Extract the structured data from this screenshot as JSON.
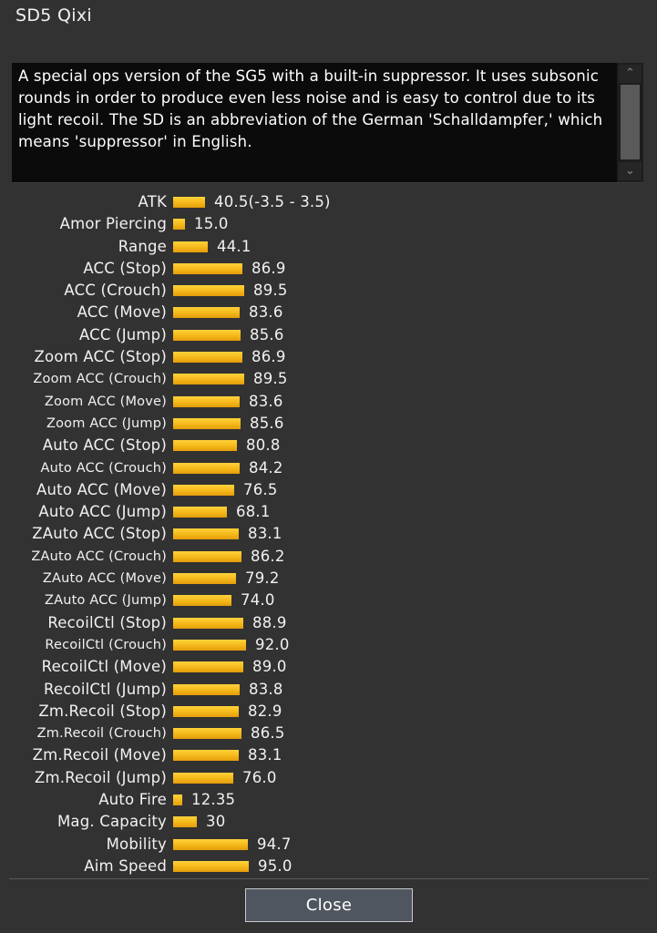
{
  "window": {
    "title": "SD5 Qixi"
  },
  "description": {
    "text": "A special ops version of the SG5 with a built-in suppressor. It uses subsonic rounds in order to produce even less noise and is easy to control due to its light recoil. The SD is an abbreviation of the German 'Schalldampfer,' which means 'suppressor' in English.",
    "scroll_up_icon": "chevron-up-icon",
    "scroll_down_icon": "chevron-down-icon"
  },
  "colors": {
    "background": "#323232",
    "description_bg": "#0b0b0b",
    "bar_top": "#ffd23a",
    "bar_bottom": "#e39c0a",
    "button_bg": "#4f565f"
  },
  "stats": [
    {
      "label": "ATK",
      "value": "40.5(-3.5 - 3.5)",
      "fill": 0.4,
      "small": false
    },
    {
      "label": "Amor Piercing",
      "value": "15.0",
      "fill": 0.15,
      "small": false
    },
    {
      "label": "Range",
      "value": "44.1",
      "fill": 0.441,
      "small": false
    },
    {
      "label": "ACC (Stop)",
      "value": "86.9",
      "fill": 0.869,
      "small": false
    },
    {
      "label": "ACC (Crouch)",
      "value": "89.5",
      "fill": 0.895,
      "small": false
    },
    {
      "label": "ACC (Move)",
      "value": "83.6",
      "fill": 0.836,
      "small": false
    },
    {
      "label": "ACC (Jump)",
      "value": "85.6",
      "fill": 0.856,
      "small": false
    },
    {
      "label": "Zoom ACC (Stop)",
      "value": "86.9",
      "fill": 0.869,
      "small": false
    },
    {
      "label": "Zoom ACC (Crouch)",
      "value": "89.5",
      "fill": 0.895,
      "small": true
    },
    {
      "label": "Zoom ACC (Move)",
      "value": "83.6",
      "fill": 0.836,
      "small": true
    },
    {
      "label": "Zoom ACC (Jump)",
      "value": "85.6",
      "fill": 0.856,
      "small": true
    },
    {
      "label": "Auto ACC (Stop)",
      "value": "80.8",
      "fill": 0.808,
      "small": false
    },
    {
      "label": "Auto ACC (Crouch)",
      "value": "84.2",
      "fill": 0.842,
      "small": true
    },
    {
      "label": "Auto ACC (Move)",
      "value": "76.5",
      "fill": 0.765,
      "small": false
    },
    {
      "label": "Auto ACC (Jump)",
      "value": "68.1",
      "fill": 0.681,
      "small": false
    },
    {
      "label": "ZAuto ACC (Stop)",
      "value": "83.1",
      "fill": 0.831,
      "small": false
    },
    {
      "label": "ZAuto ACC (Crouch)",
      "value": "86.2",
      "fill": 0.862,
      "small": true
    },
    {
      "label": "ZAuto ACC (Move)",
      "value": "79.2",
      "fill": 0.792,
      "small": true
    },
    {
      "label": "ZAuto ACC (Jump)",
      "value": "74.0",
      "fill": 0.74,
      "small": true
    },
    {
      "label": "RecoilCtl (Stop)",
      "value": "88.9",
      "fill": 0.889,
      "small": false
    },
    {
      "label": "RecoilCtl (Crouch)",
      "value": "92.0",
      "fill": 0.92,
      "small": true
    },
    {
      "label": "RecoilCtl (Move)",
      "value": "89.0",
      "fill": 0.89,
      "small": false
    },
    {
      "label": "RecoilCtl (Jump)",
      "value": "83.8",
      "fill": 0.838,
      "small": false
    },
    {
      "label": "Zm.Recoil (Stop)",
      "value": "82.9",
      "fill": 0.829,
      "small": false
    },
    {
      "label": "Zm.Recoil (Crouch)",
      "value": "86.5",
      "fill": 0.865,
      "small": true
    },
    {
      "label": "Zm.Recoil (Move)",
      "value": "83.1",
      "fill": 0.831,
      "small": false
    },
    {
      "label": "Zm.Recoil (Jump)",
      "value": "76.0",
      "fill": 0.76,
      "small": false
    },
    {
      "label": "Auto Fire",
      "value": "12.35",
      "fill": 0.12,
      "small": false
    },
    {
      "label": "Mag. Capacity",
      "value": "30",
      "fill": 0.3,
      "small": false
    },
    {
      "label": "Mobility",
      "value": "94.7",
      "fill": 0.947,
      "small": false
    },
    {
      "label": "Aim Speed",
      "value": "95.0",
      "fill": 0.95,
      "small": false
    }
  ],
  "footer": {
    "close_label": "Close"
  }
}
